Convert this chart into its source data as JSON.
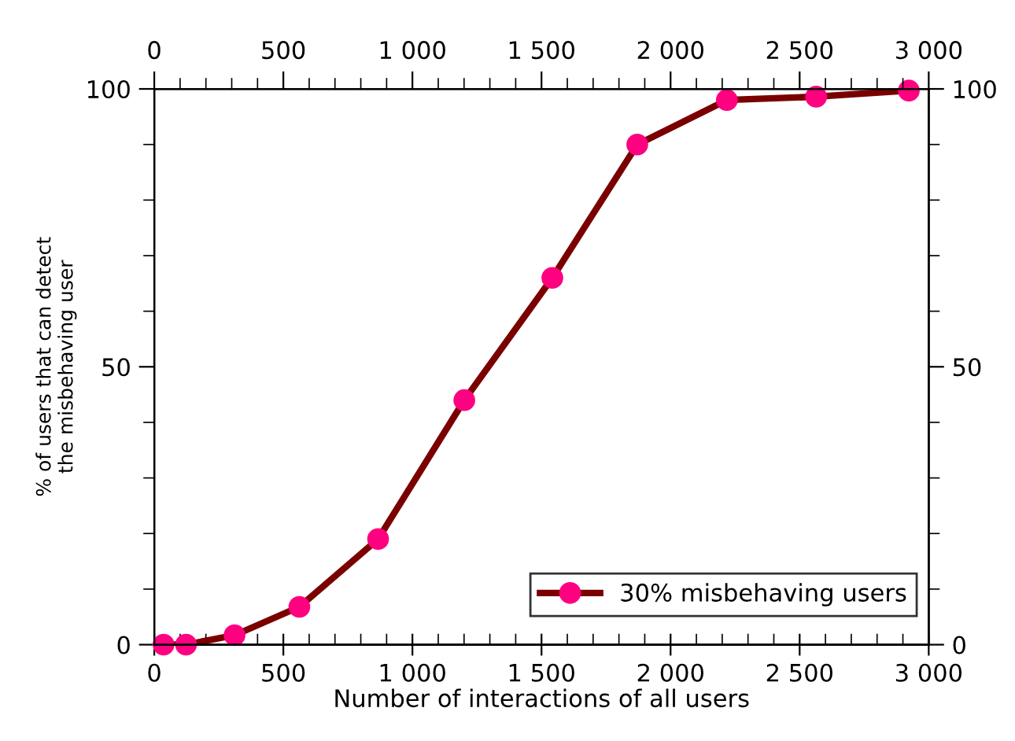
{
  "chart_data": {
    "type": "line",
    "xlabel": "Number of interactions of all users",
    "ylabel": "% of users that can detect\nthe misbehaving user",
    "xlim": [
      0,
      3000
    ],
    "ylim": [
      0,
      100
    ],
    "x2lim": [
      0,
      3000
    ],
    "y2lim": [
      0,
      100
    ],
    "xticks": [
      0,
      {
        "value": 100,
        "label": null
      },
      {
        "value": 200,
        "label": null
      },
      {
        "value": 300,
        "label": null
      },
      {
        "value": 400,
        "label": null
      },
      500,
      {
        "value": 600,
        "label": null
      },
      {
        "value": 700,
        "label": null
      },
      {
        "value": 800,
        "label": null
      },
      {
        "value": 900,
        "label": null
      },
      {
        "value": 1000,
        "label": "1 000"
      },
      {
        "value": 1100,
        "label": null
      },
      {
        "value": 1200,
        "label": null
      },
      {
        "value": 1300,
        "label": null
      },
      {
        "value": 1400,
        "label": null
      },
      {
        "value": 1500,
        "label": "1 500"
      },
      {
        "value": 1600,
        "label": null
      },
      {
        "value": 1700,
        "label": null
      },
      {
        "value": 1800,
        "label": null
      },
      {
        "value": 1900,
        "label": null
      },
      {
        "value": 2000,
        "label": "2 000"
      },
      {
        "value": 2100,
        "label": null
      },
      {
        "value": 2200,
        "label": null
      },
      {
        "value": 2300,
        "label": null
      },
      {
        "value": 2400,
        "label": null
      },
      {
        "value": 2500,
        "label": "2 500"
      },
      {
        "value": 2600,
        "label": null
      },
      {
        "value": 2700,
        "label": null
      },
      {
        "value": 2800,
        "label": null
      },
      {
        "value": 2900,
        "label": null
      },
      {
        "value": 3000,
        "label": "3 000"
      }
    ],
    "x2ticks": [
      0,
      {
        "value": 100,
        "label": null
      },
      {
        "value": 200,
        "label": null
      },
      {
        "value": 300,
        "label": null
      },
      {
        "value": 400,
        "label": null
      },
      500,
      {
        "value": 600,
        "label": null
      },
      {
        "value": 700,
        "label": null
      },
      {
        "value": 800,
        "label": null
      },
      {
        "value": 900,
        "label": null
      },
      {
        "value": 1000,
        "label": "1 000"
      },
      {
        "value": 1100,
        "label": null
      },
      {
        "value": 1200,
        "label": null
      },
      {
        "value": 1300,
        "label": null
      },
      {
        "value": 1400,
        "label": null
      },
      {
        "value": 1500,
        "label": "1 500"
      },
      {
        "value": 1600,
        "label": null
      },
      {
        "value": 1700,
        "label": null
      },
      {
        "value": 1800,
        "label": null
      },
      {
        "value": 1900,
        "label": null
      },
      {
        "value": 2000,
        "label": "2 000"
      },
      {
        "value": 2100,
        "label": null
      },
      {
        "value": 2200,
        "label": null
      },
      {
        "value": 2300,
        "label": null
      },
      {
        "value": 2400,
        "label": null
      },
      {
        "value": 2500,
        "label": "2 500"
      },
      {
        "value": 2600,
        "label": null
      },
      {
        "value": 2700,
        "label": null
      },
      {
        "value": 2800,
        "label": null
      },
      {
        "value": 2900,
        "label": null
      },
      {
        "value": 3000,
        "label": "3 000"
      }
    ],
    "yticks": [
      0,
      {
        "value": 10,
        "label": null
      },
      {
        "value": 20,
        "label": null
      },
      {
        "value": 30,
        "label": null
      },
      {
        "value": 40,
        "label": null
      },
      50,
      {
        "value": 60,
        "label": null
      },
      {
        "value": 70,
        "label": null
      },
      {
        "value": 80,
        "label": null
      },
      {
        "value": 90,
        "label": null
      },
      100
    ],
    "y2ticks": [
      0,
      {
        "value": 10,
        "label": null
      },
      {
        "value": 20,
        "label": null
      },
      {
        "value": 30,
        "label": null
      },
      {
        "value": 40,
        "label": null
      },
      50,
      {
        "value": 60,
        "label": null
      },
      {
        "value": 70,
        "label": null
      },
      {
        "value": 80,
        "label": null
      },
      {
        "value": 90,
        "label": null
      },
      100
    ],
    "marker": "circle",
    "line_style": "solid",
    "grid": false,
    "legend": "bottom right",
    "series": [
      {
        "name": "30% misbehaving users",
        "color": "#7a0000",
        "colors": [
          "#ff0080",
          "#ff0080",
          "#ff0080",
          "#ff0080",
          "#ff0080",
          "#ff0080",
          "#ff0080",
          "#ff0080",
          "#ff0080",
          "#ff0080",
          "#ff0080"
        ],
        "x": [
          36,
          123,
          311,
          562,
          867,
          1201,
          1542,
          1871,
          2218,
          2564,
          2923
        ],
        "values": [
          0,
          0,
          1.7,
          6.8,
          19,
          44,
          66,
          90,
          98,
          98.6,
          99.7
        ]
      }
    ]
  }
}
